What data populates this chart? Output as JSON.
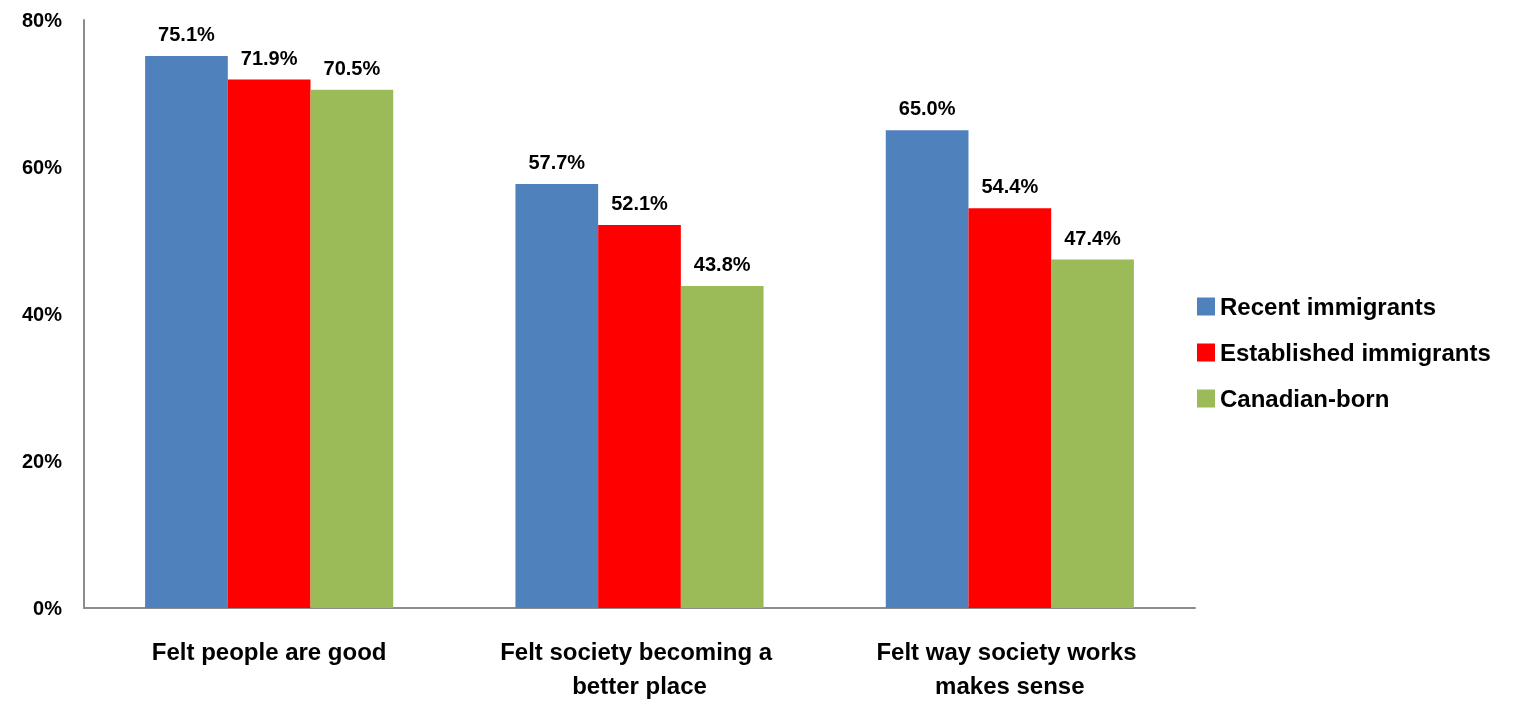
{
  "chart_data": {
    "type": "bar",
    "categories": [
      "Felt people are good",
      "Felt society becoming a better place",
      "Felt way society works makes sense"
    ],
    "series": [
      {
        "name": "Recent immigrants",
        "color": "#4f81bd",
        "values": [
          75.1,
          57.7,
          65.0
        ],
        "value_labels": [
          "75.1%",
          "57.7%",
          "65.0%"
        ]
      },
      {
        "name": "Established immigrants",
        "color": "#ff0000",
        "values": [
          71.9,
          52.1,
          54.4
        ],
        "value_labels": [
          "71.9%",
          "52.1%",
          "54.4%"
        ]
      },
      {
        "name": "Canadian-born",
        "color": "#9bbb59",
        "values": [
          70.5,
          43.8,
          47.4
        ],
        "value_labels": [
          "70.5%",
          "43.8%",
          "47.4%"
        ]
      }
    ],
    "ylim": [
      0,
      80
    ],
    "yticks": [
      {
        "value": 0,
        "label": "0%"
      },
      {
        "value": 20,
        "label": "20%"
      },
      {
        "value": 40,
        "label": "40%"
      },
      {
        "value": 60,
        "label": "60%"
      },
      {
        "value": 80,
        "label": "80%"
      }
    ],
    "grid": false,
    "legend": "right"
  }
}
